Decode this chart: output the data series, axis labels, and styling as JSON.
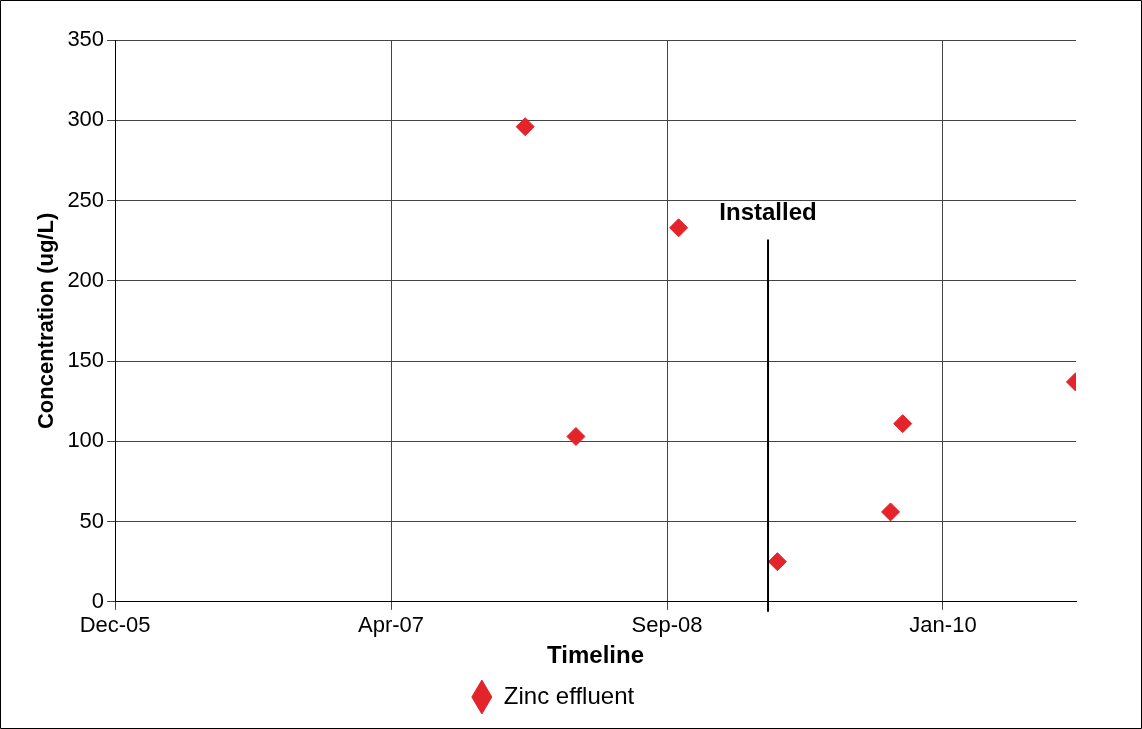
{
  "chart_data": {
    "type": "scatter",
    "xlabel": "Timeline",
    "ylabel": "Concentration (ug/L)",
    "x": [
      "2007-12-23",
      "2008-03-24",
      "2008-09-26",
      "2009-03-24",
      "2009-10-15",
      "2009-11-06",
      "2010-09-15"
    ],
    "series": [
      {
        "name": "Zinc effluent",
        "color": "#e3242b",
        "values": [
          296,
          103,
          233,
          25,
          56,
          111,
          137
        ]
      }
    ],
    "xlim": [
      "2005-12-10",
      "2010-09-16"
    ],
    "xticks": [
      {
        "value": "2005-12-10",
        "label": "Dec-05"
      },
      {
        "value": "2007-04-24",
        "label": "Apr-07"
      },
      {
        "value": "2008-09-05",
        "label": "Sep-08"
      },
      {
        "value": "2010-01-18",
        "label": "Jan-10"
      }
    ],
    "ylim": [
      0,
      350
    ],
    "yticks": [
      0,
      50,
      100,
      150,
      200,
      250,
      300,
      350
    ],
    "ref_lines": [
      {
        "axis": "x",
        "value": "2009-03-07",
        "label": "Installed",
        "color": "#000000"
      }
    ],
    "grid": true,
    "legend": "bottom",
    "marker": "diamond"
  }
}
